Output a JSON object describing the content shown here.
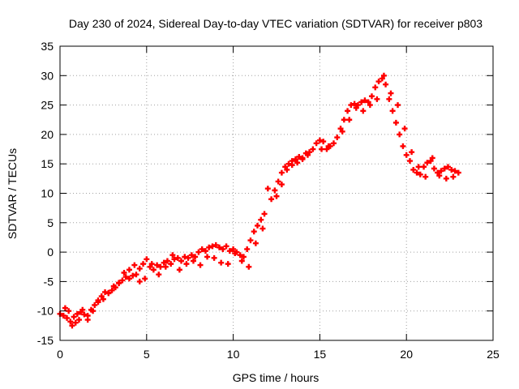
{
  "chart_data": {
    "type": "scatter",
    "title": "Day 230 of 2024, Sidereal Day-to-day VTEC variation (SDTVAR) for receiver p803",
    "xlabel": "GPS time / hours",
    "ylabel": "SDTVAR / TECUs",
    "xlim": [
      0,
      25
    ],
    "ylim": [
      -15,
      35
    ],
    "xticks": [
      0,
      5,
      10,
      15,
      20,
      25
    ],
    "yticks": [
      -15,
      -10,
      -5,
      0,
      5,
      10,
      15,
      20,
      25,
      30,
      35
    ],
    "grid": true,
    "legend": "none",
    "marker": "plus",
    "color": "#ff0000",
    "series": [
      {
        "x": [
          0.0,
          0.2,
          0.4,
          0.6,
          0.8,
          1.0,
          1.2,
          1.4,
          1.6,
          1.8,
          2.0,
          2.2,
          2.4,
          2.6,
          2.8,
          3.0,
          3.2,
          3.4,
          3.6,
          3.8,
          4.0,
          4.2,
          4.4,
          4.6,
          4.8,
          5.0,
          5.2,
          5.4,
          5.6,
          5.8,
          6.0,
          6.2,
          6.4,
          6.6,
          6.8,
          7.0,
          7.2,
          7.4,
          7.6,
          7.8,
          8.0,
          8.2,
          8.4,
          8.6,
          8.8,
          9.0,
          9.2,
          9.4,
          9.6,
          9.8,
          10.0,
          10.2,
          10.4,
          10.6,
          10.8,
          11.0,
          11.2,
          11.4,
          11.6,
          11.8,
          12.0,
          12.2,
          12.4,
          12.6,
          12.8,
          13.0,
          13.2,
          13.4,
          13.6,
          13.8,
          14.0,
          14.2,
          14.4,
          14.6,
          14.8,
          15.0,
          15.2,
          15.4,
          15.6,
          15.8,
          16.0,
          16.2,
          16.4,
          16.6,
          16.8,
          17.0,
          17.2,
          17.4,
          17.6,
          17.8,
          18.0,
          18.2,
          18.4,
          18.6,
          18.8,
          19.0,
          19.2,
          19.4,
          19.6,
          19.8,
          20.0,
          20.2,
          20.4,
          20.6,
          20.8,
          21.0,
          21.2,
          21.4,
          21.6,
          21.8,
          22.0,
          22.2,
          22.4,
          22.6,
          22.8,
          23.0
        ],
        "y": [
          -10.5,
          -10.8,
          -11.2,
          -11.8,
          -11.0,
          -10.5,
          -10.2,
          -10.6,
          -10.8,
          -9.8,
          -9.0,
          -8.2,
          -7.5,
          -6.8,
          -6.9,
          -6.5,
          -6.0,
          -5.3,
          -4.8,
          -4.2,
          -4.5,
          -4.0,
          -3.8,
          -2.8,
          -2.0,
          -1.2,
          -2.5,
          -3.0,
          -2.2,
          -2.5,
          -1.8,
          -1.5,
          -2.0,
          -1.2,
          -1.0,
          -1.5,
          -0.8,
          -1.0,
          -0.5,
          -0.8,
          0.0,
          0.5,
          0.2,
          0.8,
          1.0,
          1.2,
          0.8,
          0.5,
          1.0,
          0.2,
          0.5,
          0.0,
          -0.5,
          -0.8,
          0.5,
          2.0,
          3.5,
          4.5,
          5.5,
          6.5,
          10.8,
          9.0,
          10.5,
          12.0,
          13.5,
          14.5,
          15.0,
          15.5,
          15.8,
          16.2,
          16.0,
          16.8,
          17.0,
          17.5,
          18.5,
          19.0,
          18.8,
          17.5,
          18.0,
          18.5,
          19.5,
          21.0,
          22.5,
          24.0,
          25.0,
          25.2,
          25.0,
          25.5,
          25.8,
          25.5,
          26.5,
          28.0,
          29.0,
          29.5,
          28.5,
          26.0,
          24.0,
          22.0,
          20.0,
          18.0,
          16.5,
          15.5,
          14.0,
          13.5,
          13.2,
          14.5,
          15.2,
          15.5,
          14.2,
          13.5,
          13.8,
          14.2,
          14.5,
          14.0,
          13.8,
          13.5
        ]
      },
      {
        "x": [
          0.3,
          0.5,
          0.7,
          0.9,
          1.1,
          1.3,
          1.6,
          1.9,
          2.2,
          2.5,
          2.8,
          3.1,
          3.4,
          3.7,
          4.0,
          4.3,
          4.6,
          4.9,
          5.3,
          5.7,
          6.1,
          6.5,
          6.9,
          7.3,
          7.7,
          8.1,
          8.5,
          8.9,
          9.3,
          9.7,
          10.1,
          10.5,
          10.9,
          11.3,
          11.7,
          12.5,
          12.8,
          13.1,
          13.4,
          13.7,
          14.0,
          14.3,
          15.1,
          15.5,
          16.3,
          16.7,
          17.1,
          17.5,
          17.9,
          18.3,
          18.7,
          19.1,
          19.5,
          19.9,
          20.3,
          20.7,
          21.1,
          21.5,
          21.9,
          22.3,
          22.7
        ],
        "y": [
          -9.5,
          -10.0,
          -12.5,
          -12.0,
          -11.5,
          -9.8,
          -11.5,
          -10.0,
          -8.5,
          -8.0,
          -7.0,
          -5.8,
          -5.2,
          -3.5,
          -3.0,
          -2.2,
          -5.0,
          -4.5,
          -2.0,
          -3.8,
          -2.5,
          -0.5,
          -3.0,
          -2.0,
          -1.5,
          -2.2,
          -0.8,
          -1.0,
          -1.8,
          -2.0,
          -0.2,
          -1.5,
          -2.5,
          1.5,
          4.0,
          9.5,
          11.5,
          14.0,
          14.8,
          15.2,
          15.8,
          16.5,
          17.5,
          18.0,
          20.5,
          22.5,
          24.5,
          24.0,
          25.0,
          26.0,
          30.0,
          27.0,
          25.0,
          21.0,
          17.0,
          14.5,
          12.8,
          16.0,
          13.0,
          12.5,
          12.8
        ]
      }
    ]
  }
}
